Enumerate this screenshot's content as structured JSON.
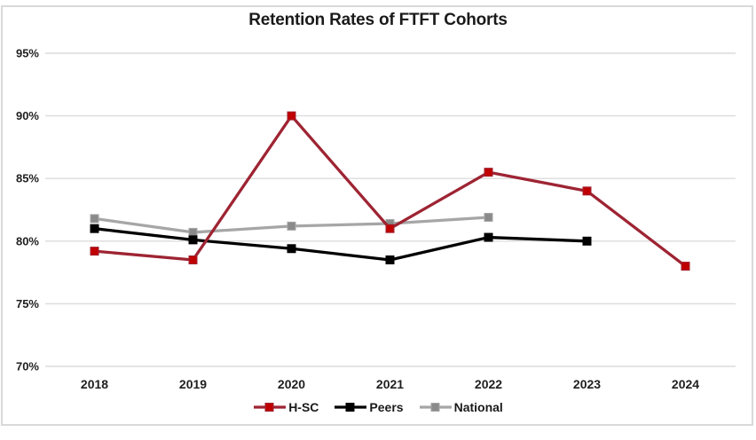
{
  "chart_data": {
    "type": "line",
    "title": "Retention Rates of FTFT Cohorts",
    "categories": [
      "2018",
      "2019",
      "2020",
      "2021",
      "2022",
      "2023",
      "2024"
    ],
    "series": [
      {
        "name": "H-SC",
        "color": "#9e2433",
        "marker_color": "#c00000",
        "values": [
          79.2,
          78.5,
          90.0,
          81.0,
          85.5,
          84.0,
          78.0
        ]
      },
      {
        "name": "Peers",
        "color": "#000000",
        "marker_color": "#000000",
        "values": [
          81.0,
          80.1,
          79.4,
          78.5,
          80.3,
          80.0,
          null
        ]
      },
      {
        "name": "National",
        "color": "#a6a6a6",
        "marker_color": "#8a8a8a",
        "values": [
          81.8,
          80.7,
          81.2,
          81.4,
          81.9,
          null,
          null
        ]
      }
    ],
    "ylim": [
      70,
      95
    ],
    "yticks": [
      {
        "value": 95,
        "label": "95%"
      },
      {
        "value": 90,
        "label": "90%"
      },
      {
        "value": 85,
        "label": "85%"
      },
      {
        "value": 80,
        "label": "80%"
      },
      {
        "value": 75,
        "label": "75%"
      },
      {
        "value": 70,
        "label": "70%"
      }
    ],
    "grid": true,
    "legend_position": "bottom",
    "gridline_color": "#dcdcdc",
    "frame_border_color": "#d9d9d9"
  }
}
